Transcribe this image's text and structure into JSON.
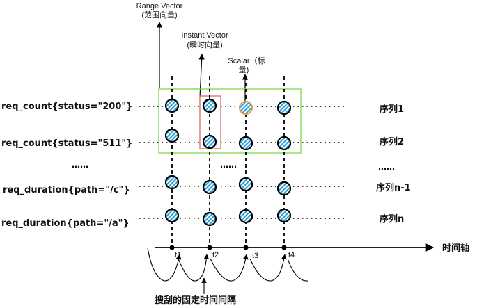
{
  "annotations": {
    "range_vector": {
      "line1": "Range Vector",
      "line2": "(范围向量)"
    },
    "instant_vector": {
      "line1": "Instant Vector",
      "line2": "(瞬时向量)"
    },
    "scalar": {
      "line1": "Scalar（标",
      "line2": "量)"
    }
  },
  "series": [
    {
      "name": "req_count{status=\"200\"}",
      "label": "序列1"
    },
    {
      "name": "req_count{status=\"511\"}",
      "label": "序列2"
    },
    {
      "name": "req_duration{path=\"/c\"}",
      "label": "序列n-1"
    },
    {
      "name": "req_duration{path=\"/a\"}",
      "label": "序列n"
    }
  ],
  "ellipsis": [
    "……",
    "……",
    "……"
  ],
  "time_axis": {
    "label": "时间轴",
    "ticks": [
      "t1",
      "t2",
      "t3",
      "t4"
    ]
  },
  "bottom_caption": "搜刮的固定时间间隔",
  "colors": {
    "range_box": "#7dd94a",
    "instant_box": "#e06666",
    "scalar_sample": "#ee9944",
    "sample_fill": "#2a9fd8",
    "line": "#000000"
  }
}
